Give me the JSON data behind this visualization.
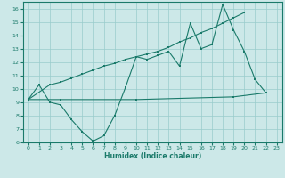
{
  "xlabel": "Humidex (Indice chaleur)",
  "xlim": [
    -0.5,
    23.5
  ],
  "ylim": [
    6,
    16.5
  ],
  "yticks": [
    6,
    7,
    8,
    9,
    10,
    11,
    12,
    13,
    14,
    15,
    16
  ],
  "xticks": [
    0,
    1,
    2,
    3,
    4,
    5,
    6,
    7,
    8,
    9,
    10,
    11,
    12,
    13,
    14,
    15,
    16,
    17,
    18,
    19,
    20,
    21,
    22,
    23
  ],
  "bg_color": "#cce8e8",
  "grid_color": "#99cccc",
  "line_color": "#1a7a6a",
  "line1_y": [
    9.2,
    10.3,
    9.0,
    8.8,
    7.7,
    6.8,
    6.1,
    6.5,
    8.0,
    10.1,
    12.4,
    12.2,
    12.5,
    12.8,
    11.7,
    14.9,
    13.0,
    13.3,
    16.3,
    14.4,
    12.8,
    10.7,
    9.7,
    null
  ],
  "line2_y": [
    9.2,
    null,
    10.3,
    10.5,
    10.8,
    11.1,
    11.4,
    11.7,
    11.9,
    12.2,
    12.4,
    12.6,
    12.8,
    13.1,
    13.5,
    13.8,
    14.2,
    14.5,
    14.9,
    15.3,
    15.7,
    null,
    null,
    null
  ],
  "line3_y": [
    9.2,
    null,
    null,
    9.2,
    null,
    null,
    null,
    null,
    null,
    null,
    9.2,
    null,
    null,
    null,
    null,
    null,
    null,
    null,
    null,
    9.4,
    null,
    null,
    9.7,
    null
  ]
}
